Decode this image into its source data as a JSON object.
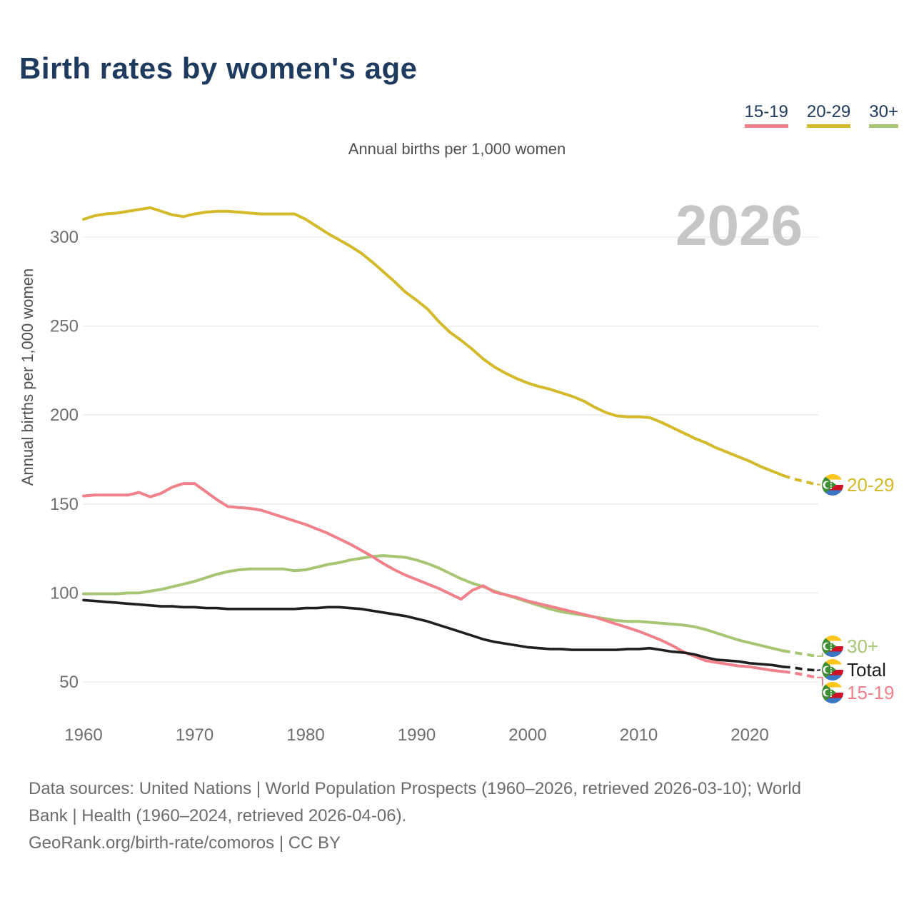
{
  "page": {
    "title": "Birth rates by women's age",
    "subtitle": "Annual births per 1,000 women",
    "watermark": "2026"
  },
  "legend": {
    "items": [
      {
        "label": "15-19",
        "color": "#f0808a"
      },
      {
        "label": "20-29",
        "color": "#d4ba2b"
      },
      {
        "label": "30+",
        "color": "#a7c674"
      }
    ]
  },
  "footer": {
    "line1": "Data sources: United Nations | World Population Prospects (1960–2026, retrieved 2026-03-10); World",
    "line2": "Bank | Health (1960–2024, retrieved 2026-04-06).",
    "line3": "GeoRank.org/birth-rate/comoros | CC BY"
  },
  "chart_data": {
    "type": "line",
    "title": "Birth rates by women's age",
    "subtitle": "Annual births per 1,000 women",
    "ylabel": "Annual births per 1,000 women",
    "xlabel": "",
    "watermark": "2026",
    "grid": true,
    "legend_position": "top-right",
    "xlim": [
      1960,
      2026
    ],
    "ylim": [
      40,
      330
    ],
    "x_ticks": [
      1960,
      1970,
      1980,
      1990,
      2000,
      2010,
      2020
    ],
    "y_ticks": [
      50,
      100,
      150,
      200,
      250,
      300
    ],
    "projection_from": 2023,
    "end_label_icon": "comoros-flag-icon",
    "x": [
      1960,
      1961,
      1962,
      1963,
      1964,
      1965,
      1966,
      1967,
      1968,
      1969,
      1970,
      1971,
      1972,
      1973,
      1974,
      1975,
      1976,
      1977,
      1978,
      1979,
      1980,
      1981,
      1982,
      1983,
      1984,
      1985,
      1986,
      1987,
      1988,
      1989,
      1990,
      1991,
      1992,
      1993,
      1994,
      1995,
      1996,
      1997,
      1998,
      1999,
      2000,
      2001,
      2002,
      2003,
      2004,
      2005,
      2006,
      2007,
      2008,
      2009,
      2010,
      2011,
      2012,
      2013,
      2014,
      2015,
      2016,
      2017,
      2018,
      2019,
      2020,
      2021,
      2022,
      2023,
      2024,
      2025,
      2026
    ],
    "series": [
      {
        "name": "20-29",
        "color": "#d4ba2b",
        "end_label": "20-29",
        "values": [
          310,
          312,
          313,
          313.5,
          314.5,
          315.5,
          316.5,
          314.5,
          312.5,
          311.5,
          313,
          314,
          314.5,
          314.5,
          314,
          313.5,
          313,
          313,
          313,
          313,
          310,
          306,
          302,
          298.5,
          295,
          291,
          286,
          280.5,
          275,
          269,
          264.5,
          259.5,
          252.5,
          246.5,
          242,
          237,
          231.5,
          227,
          223.5,
          220.5,
          218,
          216,
          214.5,
          212.5,
          210.5,
          208,
          204.5,
          201.5,
          199.5,
          199,
          199,
          198.5,
          196,
          193,
          190,
          187,
          184.5,
          181.5,
          179,
          176.5,
          174,
          171,
          168.5,
          166,
          164,
          162.5,
          161
        ]
      },
      {
        "name": "30+",
        "color": "#a7c674",
        "end_label": "30+",
        "values": [
          99.5,
          99.5,
          99.5,
          99.5,
          100,
          100,
          101,
          102,
          103.5,
          105,
          106.5,
          108.5,
          110.5,
          112,
          113,
          113.5,
          113.5,
          113.5,
          113.5,
          112.5,
          113,
          114.5,
          116,
          117,
          118.5,
          119.5,
          120.5,
          121,
          120.5,
          120,
          118.5,
          116.5,
          114,
          111,
          108,
          105.5,
          103.5,
          101,
          99,
          97,
          95,
          93,
          91,
          89.5,
          88.5,
          87.5,
          86.5,
          85.5,
          84.5,
          84,
          84,
          83.5,
          83,
          82.5,
          82,
          81,
          79.5,
          77.5,
          75.5,
          73.5,
          72,
          70.5,
          69,
          67.5,
          66.5,
          65.5,
          64.5
        ]
      },
      {
        "name": "15-19",
        "color": "#f0808a",
        "end_label": "15-19",
        "values": [
          154.5,
          155,
          155,
          155,
          155,
          156.5,
          154,
          156,
          159.5,
          161.5,
          161.5,
          157,
          152.5,
          148.5,
          148,
          147.5,
          146.5,
          144.5,
          142.5,
          140.5,
          138.5,
          136,
          133.5,
          130.5,
          127.5,
          124,
          120.5,
          116.5,
          113,
          110,
          107.5,
          105,
          102.5,
          99.5,
          96.5,
          101.5,
          104,
          100.5,
          99,
          97.5,
          95.5,
          94,
          92.5,
          91,
          89.5,
          88,
          86.5,
          84.5,
          82.5,
          80.5,
          78.5,
          76,
          73.5,
          70.5,
          67,
          64.5,
          62,
          61,
          60,
          59,
          58.5,
          57.5,
          56.5,
          55.8,
          55,
          53.8,
          52.5
        ]
      },
      {
        "name": "Total",
        "color": "#1f1f1f",
        "end_label": "Total",
        "values": [
          96,
          95.5,
          95,
          94.5,
          94,
          93.5,
          93,
          92.5,
          92.5,
          92,
          92,
          91.5,
          91.5,
          91,
          91,
          91,
          91,
          91,
          91,
          91,
          91.5,
          91.5,
          92,
          92,
          91.5,
          91,
          90,
          89,
          88,
          87,
          85.5,
          84,
          82,
          80,
          78,
          76,
          74,
          72.5,
          71.5,
          70.5,
          69.5,
          69,
          68.5,
          68.5,
          68,
          68,
          68,
          68,
          68,
          68.5,
          68.5,
          69,
          68,
          67,
          66.5,
          65.5,
          63.8,
          62.5,
          62,
          61.5,
          60.5,
          60,
          59.5,
          58.5,
          58,
          57,
          56.5
        ]
      }
    ],
    "flag_colors": {
      "yellow": "#FFC61E",
      "white": "#FFFFFF",
      "red": "#CE1126",
      "blue": "#3A75C4",
      "green": "#3D8E33"
    }
  }
}
